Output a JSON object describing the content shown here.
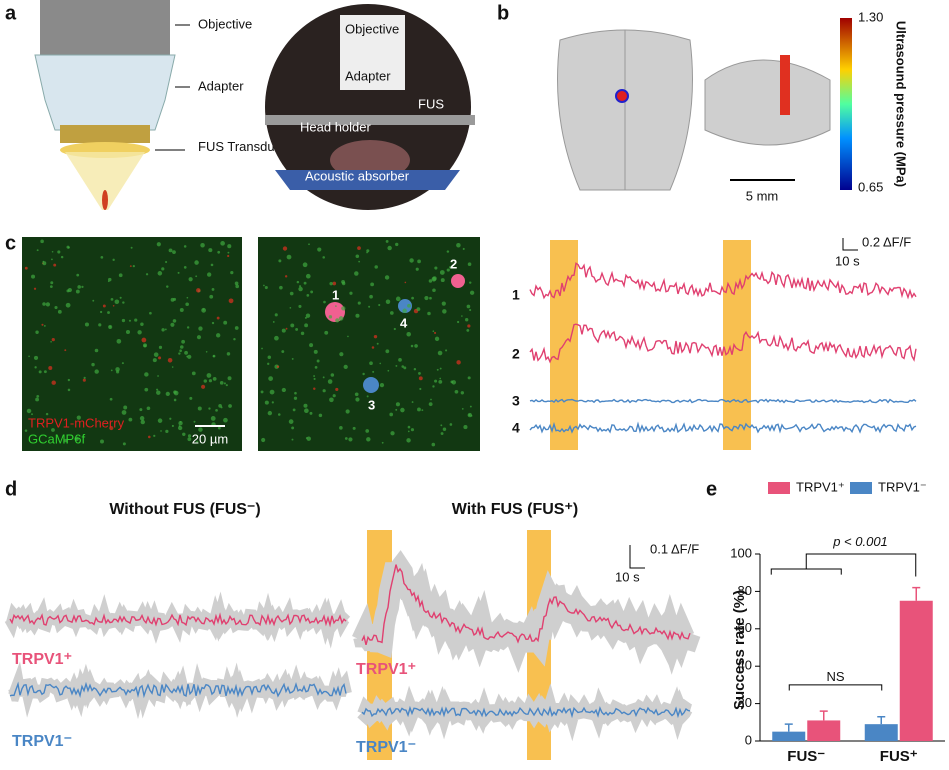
{
  "panels": {
    "a": {
      "letter": "a",
      "objective": "Objective",
      "adapter": "Adapter",
      "transducer": "FUS Transducer",
      "photo": {
        "objective": "Objective",
        "adapter": "Adapter",
        "fus": "FUS",
        "head_holder": "Head holder",
        "absorber": "Acoustic absorber"
      }
    },
    "b": {
      "letter": "b",
      "colorbar_title": "Ultrasound pressure (MPa)",
      "colorbar_max": "1.30",
      "colorbar_min": "0.65",
      "scale": "5 mm"
    },
    "c": {
      "letter": "c",
      "red_label": "TRPV1-mCherry",
      "green_label": "GCaMP6f",
      "scale": "20 µm",
      "cells": [
        "1",
        "2",
        "3",
        "4"
      ],
      "trace_labels": [
        "1",
        "2",
        "3",
        "4"
      ],
      "scale_y": "0.2 ΔF/F",
      "scale_x": "10 s"
    },
    "d": {
      "letter": "d",
      "left_title": "Without FUS (FUS⁻)",
      "right_title": "With FUS (FUS⁺)",
      "scale_y": "0.1 ΔF/F",
      "scale_x": "10 s",
      "labels_left": [
        "TRPV1⁺",
        "TRPV1⁻"
      ],
      "labels_right": [
        "TRPV1⁺",
        "TRPV1⁻"
      ]
    }
  },
  "chart_data": {
    "type": "bar",
    "panel_label": "e",
    "y_label": "Success rate (%)",
    "categories": [
      "FUS⁻",
      "FUS⁺"
    ],
    "series": [
      {
        "name": "TRPV1⁻",
        "color": "#4a86c5",
        "values": [
          5,
          9
        ],
        "errors": [
          4,
          4
        ]
      },
      {
        "name": "TRPV1⁺",
        "color": "#e8537a",
        "values": [
          11,
          75
        ],
        "errors": [
          5,
          7
        ]
      }
    ],
    "ylim": [
      0,
      100
    ],
    "yticks": [
      0,
      20,
      40,
      60,
      80,
      100
    ],
    "annotations": [
      "NS",
      "p < 0.001"
    ]
  }
}
